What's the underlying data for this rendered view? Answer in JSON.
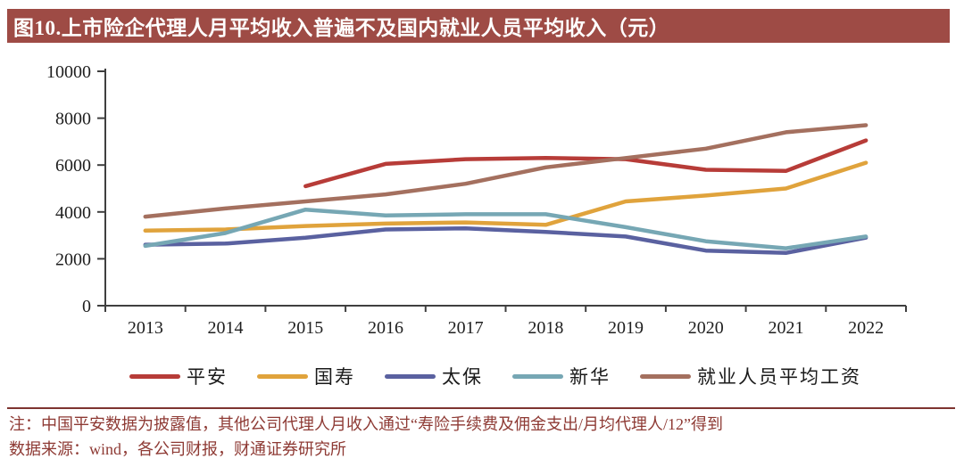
{
  "title": "图10.上市险企代理人月平均收入普遍不及国内就业人员平均收入（元）",
  "chart_data": {
    "type": "line",
    "x": [
      "2013",
      "2014",
      "2015",
      "2016",
      "2017",
      "2018",
      "2019",
      "2020",
      "2021",
      "2022"
    ],
    "series": [
      {
        "name": "平安",
        "color": "#B73C38",
        "values": [
          null,
          null,
          5100,
          6050,
          6250,
          6300,
          6250,
          5800,
          5750,
          7050
        ]
      },
      {
        "name": "国寿",
        "color": "#E0A33C",
        "values": [
          3200,
          3250,
          3400,
          3500,
          3550,
          3450,
          4450,
          4700,
          5000,
          6100
        ]
      },
      {
        "name": "太保",
        "color": "#5A61A0",
        "values": [
          2600,
          2650,
          2900,
          3250,
          3300,
          3150,
          2950,
          2350,
          2250,
          2900
        ]
      },
      {
        "name": "新华",
        "color": "#76A7B4",
        "values": [
          2550,
          3100,
          4100,
          3850,
          3900,
          3900,
          3350,
          2750,
          2450,
          2950
        ]
      },
      {
        "name": "就业人员平均工资",
        "color": "#A4705F",
        "values": [
          3800,
          4150,
          4450,
          4750,
          5200,
          5900,
          6300,
          6700,
          7400,
          7700
        ]
      }
    ],
    "ylim": [
      0,
      10000
    ],
    "yticks": [
      0,
      2000,
      4000,
      6000,
      8000,
      10000
    ],
    "xlabel": "",
    "ylabel": "",
    "grid": false,
    "legend_position": "bottom"
  },
  "footnotes": {
    "note": "注：中国平安数据为披露值，其他公司代理人月收入通过“寿险手续费及佣金支出/月均代理人/12”得到",
    "source": "数据来源：wind，各公司财报，财通证券研究所"
  },
  "colors": {
    "title_bar_bg": "#9E4B45",
    "title_text": "#FFFFFF",
    "axis": "#3F3F3F",
    "footnote_text": "#8E3A34"
  }
}
